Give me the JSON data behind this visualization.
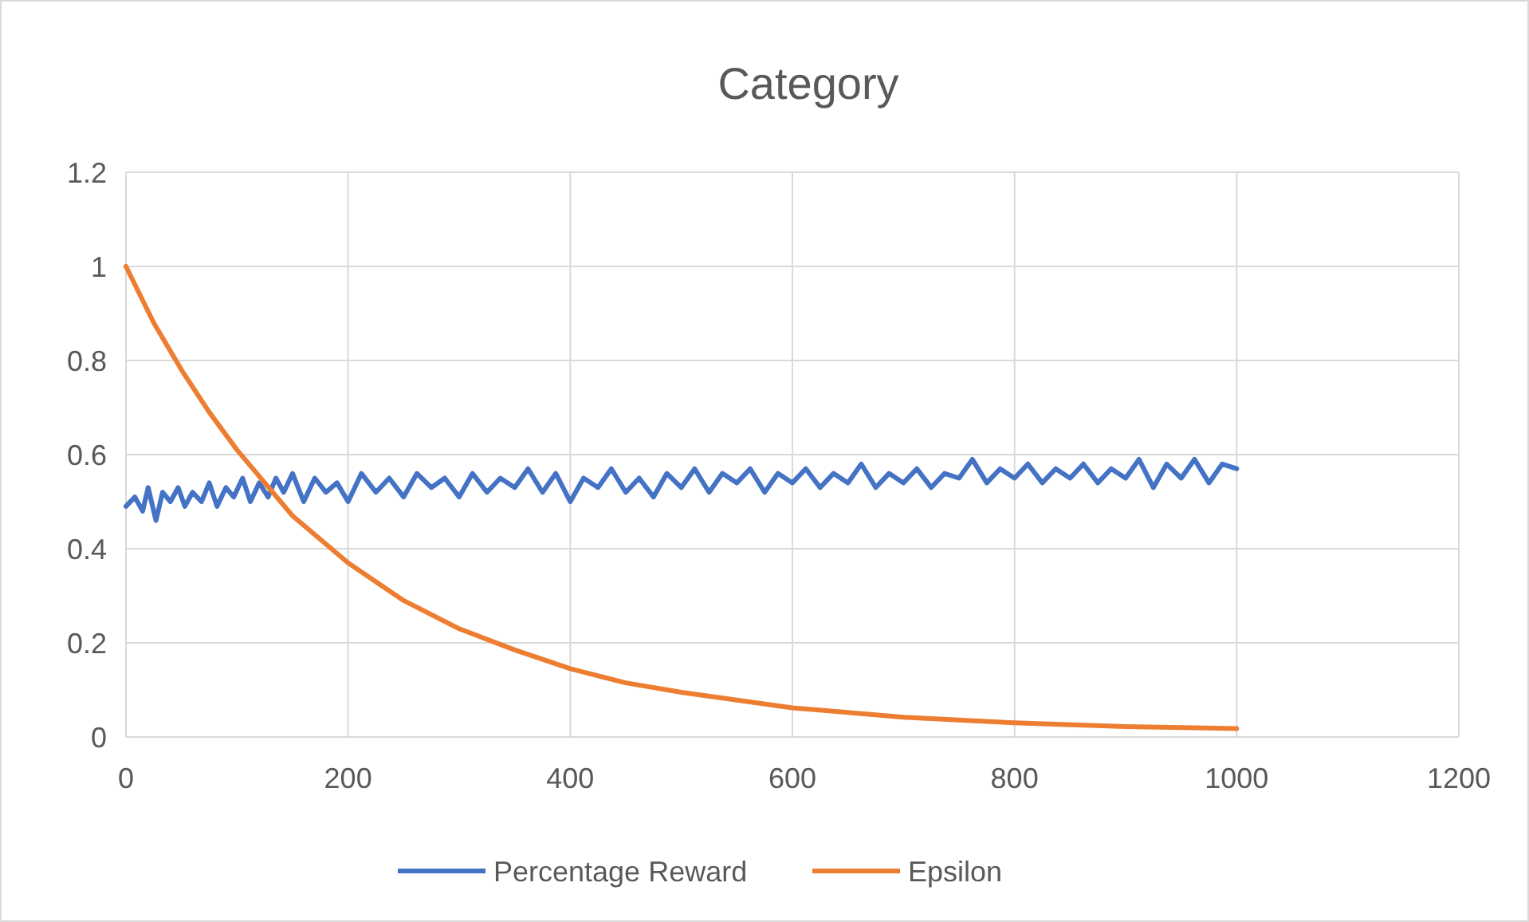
{
  "chart_data": {
    "type": "line",
    "title": "Category",
    "xlim": [
      0,
      1200
    ],
    "xticks": [
      0,
      200,
      400,
      600,
      800,
      1000,
      1200
    ],
    "ylim": [
      0,
      1.2
    ],
    "yticks": [
      0,
      0.2,
      0.4,
      0.6,
      0.8,
      1,
      1.2
    ],
    "grid": true,
    "legend": "bottom",
    "marker": "none",
    "line_style": "solid",
    "series": [
      {
        "name": "Percentage Reward",
        "color": "#4472c4",
        "x": [
          0,
          8,
          15,
          20,
          27,
          33,
          40,
          47,
          53,
          60,
          68,
          75,
          82,
          90,
          97,
          105,
          112,
          120,
          128,
          135,
          142,
          150,
          160,
          170,
          180,
          190,
          200,
          212,
          225,
          237,
          250,
          262,
          275,
          287,
          300,
          312,
          325,
          337,
          350,
          362,
          375,
          387,
          400,
          412,
          425,
          437,
          450,
          462,
          475,
          487,
          500,
          512,
          525,
          537,
          550,
          562,
          575,
          587,
          600,
          612,
          625,
          637,
          650,
          662,
          675,
          687,
          700,
          712,
          725,
          737,
          750,
          762,
          775,
          787,
          800,
          812,
          825,
          837,
          850,
          862,
          875,
          887,
          900,
          912,
          925,
          937,
          950,
          962,
          975,
          987,
          1000
        ],
        "values": [
          0.49,
          0.51,
          0.48,
          0.53,
          0.46,
          0.52,
          0.5,
          0.53,
          0.49,
          0.52,
          0.5,
          0.54,
          0.49,
          0.53,
          0.51,
          0.55,
          0.5,
          0.54,
          0.51,
          0.55,
          0.52,
          0.56,
          0.5,
          0.55,
          0.52,
          0.54,
          0.5,
          0.56,
          0.52,
          0.55,
          0.51,
          0.56,
          0.53,
          0.55,
          0.51,
          0.56,
          0.52,
          0.55,
          0.53,
          0.57,
          0.52,
          0.56,
          0.5,
          0.55,
          0.53,
          0.57,
          0.52,
          0.55,
          0.51,
          0.56,
          0.53,
          0.57,
          0.52,
          0.56,
          0.54,
          0.57,
          0.52,
          0.56,
          0.54,
          0.57,
          0.53,
          0.56,
          0.54,
          0.58,
          0.53,
          0.56,
          0.54,
          0.57,
          0.53,
          0.56,
          0.55,
          0.59,
          0.54,
          0.57,
          0.55,
          0.58,
          0.54,
          0.57,
          0.55,
          0.58,
          0.54,
          0.57,
          0.55,
          0.59,
          0.53,
          0.58,
          0.55,
          0.59,
          0.54,
          0.58,
          0.57
        ]
      },
      {
        "name": "Epsilon",
        "color": "#ed7d31",
        "x": [
          0,
          25,
          50,
          75,
          100,
          125,
          150,
          175,
          200,
          250,
          300,
          350,
          400,
          450,
          500,
          600,
          700,
          800,
          900,
          1000
        ],
        "values": [
          1,
          0.88,
          0.78,
          0.69,
          0.61,
          0.54,
          0.47,
          0.42,
          0.37,
          0.29,
          0.23,
          0.185,
          0.145,
          0.115,
          0.095,
          0.062,
          0.042,
          0.03,
          0.022,
          0.018
        ]
      }
    ]
  }
}
